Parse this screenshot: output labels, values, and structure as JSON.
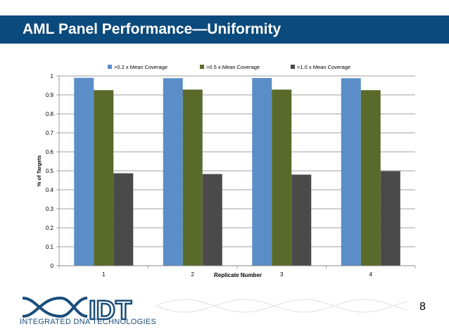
{
  "slide": {
    "title": "AML Panel Performance—Uniformity",
    "page_number": "8",
    "logo_text": "INTEGRATED DNA TECHNOLOGIES",
    "logo_mark": "IDT",
    "colors": {
      "title_bar": "#0b4a7c",
      "logo": "#1a4d7c"
    }
  },
  "chart_data": {
    "type": "bar",
    "categories": [
      "1",
      "2",
      "3",
      "4"
    ],
    "series": [
      {
        "name": ">0.2 x Mean Coverage",
        "color": "#5b8ec9",
        "values": [
          0.99,
          0.988,
          0.989,
          0.988
        ]
      },
      {
        "name": ">0.5 x Mean Coverage",
        "color": "#5a6a2a",
        "values": [
          0.925,
          0.928,
          0.928,
          0.925
        ]
      },
      {
        "name": ">1.0 x Mean Coverage",
        "color": "#4a4a4a",
        "values": [
          0.487,
          0.483,
          0.48,
          0.498
        ]
      }
    ],
    "xlabel": "Replicate Number",
    "ylabel": "% of Targets",
    "ylim": [
      0,
      1
    ],
    "yticks": [
      "0",
      "0.1",
      "0.2",
      "0.3",
      "0.4",
      "0.5",
      "0.6",
      "0.7",
      "0.8",
      "0.9",
      "1"
    ],
    "grid": true,
    "legend": "top"
  }
}
